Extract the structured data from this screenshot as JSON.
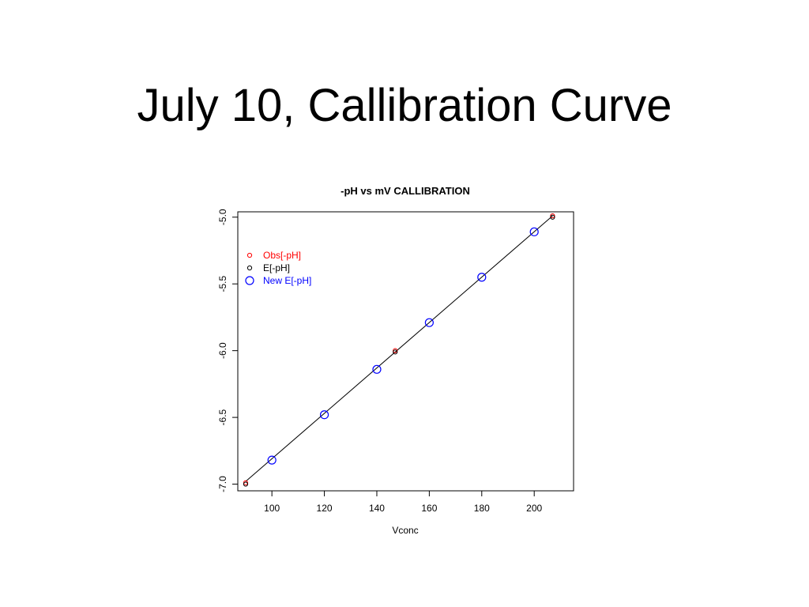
{
  "slide": {
    "title": "July 10, Callibration Curve"
  },
  "chart_data": {
    "type": "scatter",
    "title": "-pH vs mV CALLIBRATION",
    "xlabel": "Vconc",
    "ylabel": "",
    "xlim": [
      87,
      215
    ],
    "ylim": [
      -7.05,
      -4.96
    ],
    "x_ticks": [
      "100",
      "120",
      "140",
      "160",
      "180",
      "200"
    ],
    "y_ticks": [
      "-7.0",
      "-6.5",
      "-6.0",
      "-5.5",
      "-5.0"
    ],
    "grid": false,
    "legend_position": "top-left",
    "series": [
      {
        "name": "Obs[-pH]",
        "color": "#ff0000",
        "marker": "small-circle",
        "points": [
          {
            "x": 90,
            "y": -6.99
          },
          {
            "x": 147,
            "y": -6.0
          },
          {
            "x": 207,
            "y": -4.99
          }
        ]
      },
      {
        "name": "E[-pH]",
        "color": "#000000",
        "marker": "small-circle",
        "points": [
          {
            "x": 90,
            "y": -7.0
          },
          {
            "x": 147,
            "y": -6.01
          },
          {
            "x": 207,
            "y": -5.0
          }
        ]
      },
      {
        "name": "New E[-pH]",
        "color": "#0000ff",
        "marker": "large-circle",
        "points": [
          {
            "x": 100,
            "y": -6.82
          },
          {
            "x": 120,
            "y": -6.48
          },
          {
            "x": 140,
            "y": -6.14
          },
          {
            "x": 160,
            "y": -5.79
          },
          {
            "x": 180,
            "y": -5.45
          },
          {
            "x": 200,
            "y": -5.11
          }
        ]
      }
    ],
    "fit_line": {
      "color": "#000000",
      "x": [
        90,
        207
      ],
      "y": [
        -6.98,
        -4.99
      ]
    }
  }
}
